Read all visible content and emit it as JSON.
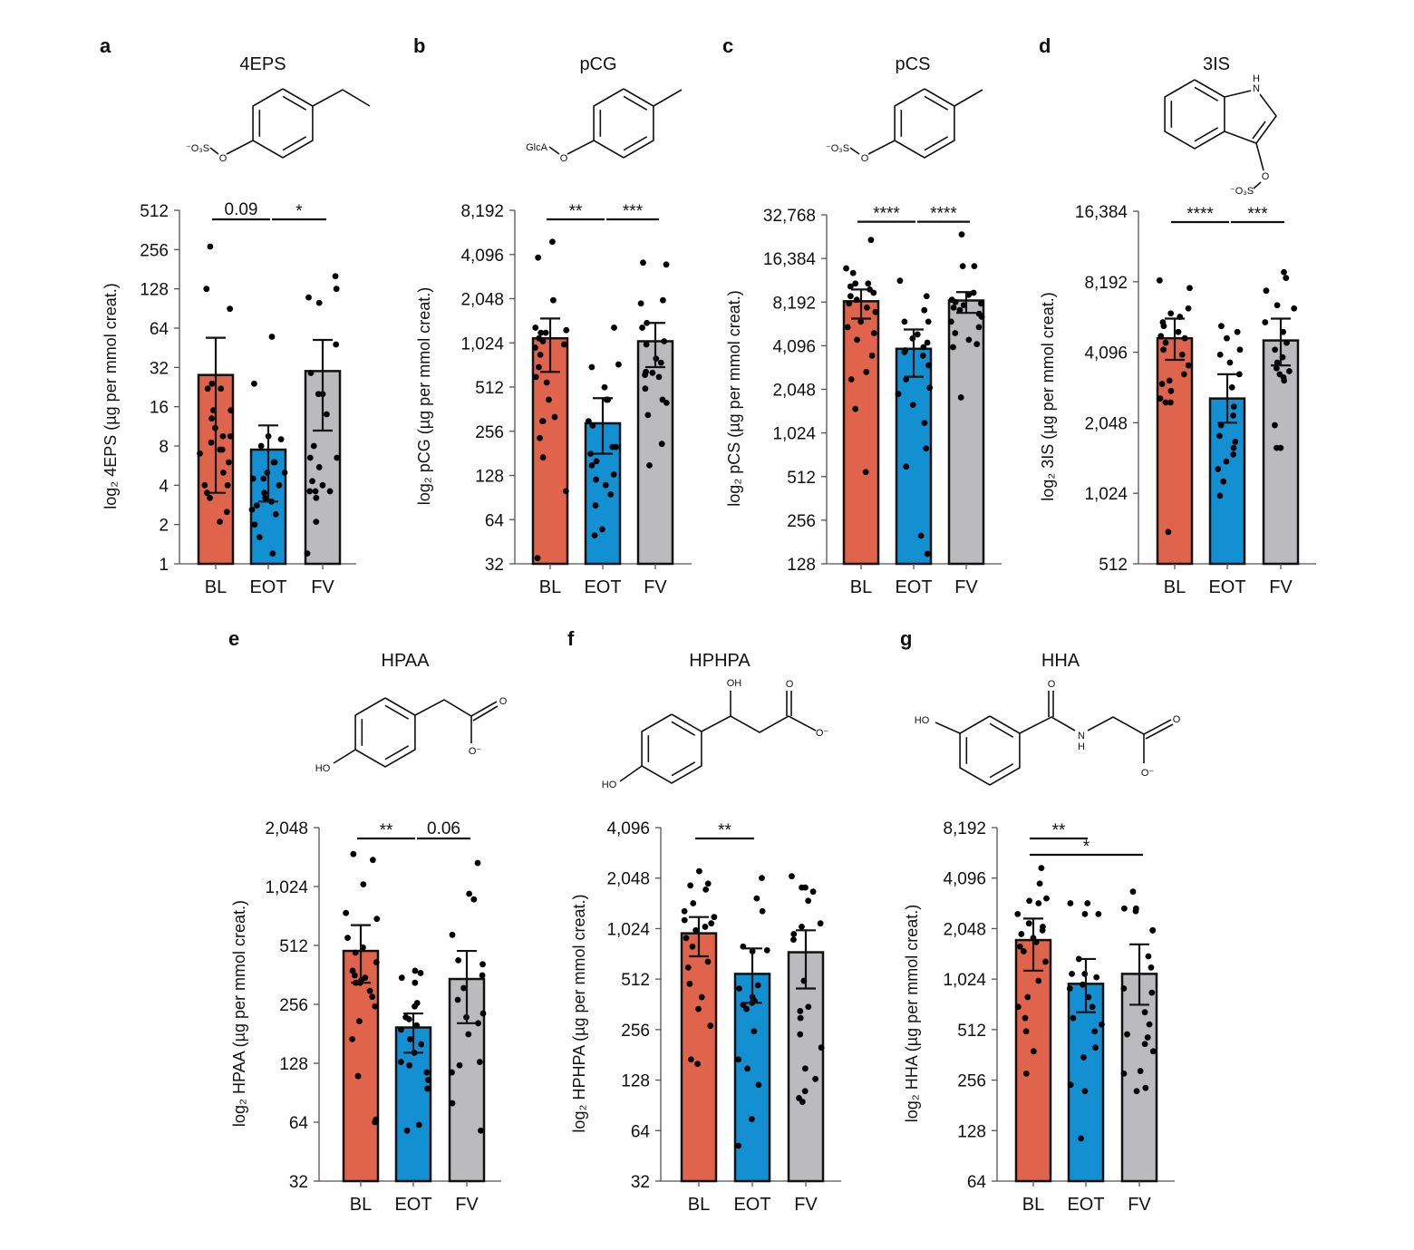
{
  "colors": {
    "BL": "#E0644B",
    "EOT": "#1390D2",
    "FV": "#BBBBBD"
  },
  "chart_data": [
    {
      "type": "bar",
      "panel": "a",
      "title": "4EPS",
      "ylabel": "log₂ 4EPS (µg per mmol creat.)",
      "yscale": "log2",
      "ylim": [
        1,
        512
      ],
      "yticks": [
        1,
        2,
        4,
        8,
        16,
        32,
        64,
        128,
        256,
        512
      ],
      "categories": [
        "BL",
        "EOT",
        "FV"
      ],
      "structure_labels": [
        "⁻O₃S",
        "O"
      ],
      "values": [
        28,
        7.5,
        30
      ],
      "error": [
        [
          3.5,
          54
        ],
        [
          3,
          11.5
        ],
        [
          10.5,
          52
        ]
      ],
      "points": [
        [
          270,
          128,
          90,
          24,
          22,
          22,
          15,
          15,
          13,
          11,
          9.5,
          9.5,
          8.5,
          7.5,
          7.5,
          7,
          6,
          5,
          4,
          4,
          3.5,
          3.2,
          2.5,
          2.1
        ],
        [
          55,
          24,
          9.5,
          9,
          8,
          6,
          6,
          5,
          5,
          4.5,
          4.5,
          4,
          3.5,
          3.2,
          3,
          2.8,
          2.6,
          2.4,
          2,
          1.6,
          1.2
        ],
        [
          160,
          128,
          110,
          100,
          48,
          29,
          20,
          20,
          14,
          8,
          6.5,
          6.5,
          5.5,
          4.3,
          4,
          3.6,
          3.6,
          3.6,
          3.2,
          2.1,
          1.2
        ]
      ],
      "significance": [
        {
          "from": "BL",
          "to": "EOT",
          "label": "0.09",
          "level": 0
        },
        {
          "from": "EOT",
          "to": "FV",
          "label": "*",
          "level": 0
        }
      ]
    },
    {
      "type": "bar",
      "panel": "b",
      "title": "pCG",
      "ylabel": "log₂ pCG (µg per mmol creat.)",
      "yscale": "log2",
      "ylim": [
        32,
        8192
      ],
      "yticks": [
        32,
        64,
        128,
        256,
        512,
        1024,
        2048,
        4096,
        8192
      ],
      "categories": [
        "BL",
        "EOT",
        "FV"
      ],
      "structure_labels": [
        "GlcA",
        "O"
      ],
      "values": [
        1100,
        290,
        1050
      ],
      "error": [
        [
          650,
          1500
        ],
        [
          180,
          430
        ],
        [
          700,
          1400
        ]
      ],
      "points": [
        [
          5000,
          3900,
          2000,
          1300,
          1250,
          1200,
          1200,
          1100,
          1050,
          1000,
          950,
          850,
          700,
          600,
          550,
          420,
          320,
          300,
          300,
          230,
          170,
          100,
          35
        ],
        [
          1300,
          730,
          700,
          510,
          420,
          420,
          300,
          280,
          200,
          200,
          180,
          160,
          150,
          130,
          120,
          110,
          95,
          80,
          55,
          50
        ],
        [
          3600,
          3500,
          2000,
          1900,
          1400,
          1300,
          1050,
          1000,
          800,
          750,
          650,
          640,
          620,
          600,
          500,
          420,
          400,
          330,
          210,
          150
        ]
      ],
      "significance": [
        {
          "from": "BL",
          "to": "EOT",
          "label": "**",
          "level": 0
        },
        {
          "from": "EOT",
          "to": "FV",
          "label": "***",
          "level": 0
        }
      ]
    },
    {
      "type": "bar",
      "panel": "c",
      "title": "pCS",
      "ylabel": "log₂ pCS (µg per mmol creat.)",
      "yscale": "log2",
      "ylim": [
        128,
        32768
      ],
      "yticks": [
        128,
        256,
        512,
        1024,
        2048,
        4096,
        8192,
        16384,
        32768
      ],
      "categories": [
        "BL",
        "EOT",
        "FV"
      ],
      "structure_labels": [
        "⁻O₃S",
        "O"
      ],
      "values": [
        8300,
        3900,
        8400
      ],
      "error": [
        [
          6300,
          10000
        ],
        [
          2500,
          5300
        ],
        [
          6900,
          9600
        ]
      ],
      "points": [
        [
          22000,
          14000,
          13000,
          11000,
          11000,
          10500,
          10000,
          9500,
          9000,
          8500,
          8000,
          7500,
          7000,
          6000,
          5500,
          5000,
          4500,
          3500,
          2700,
          2400,
          1500,
          550
        ],
        [
          11500,
          9000,
          7200,
          6000,
          6000,
          4900,
          4600,
          4300,
          4000,
          3800,
          3700,
          3500,
          3000,
          2400,
          2100,
          1900,
          1600,
          1200,
          800,
          600,
          200,
          150
        ],
        [
          24000,
          14500,
          14500,
          9500,
          9200,
          8500,
          8200,
          8000,
          7800,
          7500,
          7200,
          6800,
          6500,
          6000,
          5500,
          5000,
          4500,
          4200,
          4000,
          1800
        ]
      ],
      "significance": [
        {
          "from": "BL",
          "to": "EOT",
          "label": "****",
          "level": 0
        },
        {
          "from": "EOT",
          "to": "FV",
          "label": "****",
          "level": 0
        }
      ]
    },
    {
      "type": "bar",
      "panel": "d",
      "title": "3IS",
      "ylabel": "log₂ 3IS (µg per mmol creat.)",
      "yscale": "log2",
      "ylim": [
        512,
        16384
      ],
      "yticks": [
        512,
        1024,
        2048,
        4096,
        8192,
        16384
      ],
      "categories": [
        "BL",
        "EOT",
        "FV"
      ],
      "structure_labels": [
        "H",
        "N",
        "O",
        "⁻O₃S"
      ],
      "values": [
        4700,
        2600,
        4600
      ],
      "error": [
        [
          3800,
          5700
        ],
        [
          2050,
          3300
        ],
        [
          3600,
          5700
        ]
      ],
      "points": [
        [
          8300,
          7700,
          6300,
          6000,
          5800,
          5500,
          5300,
          5000,
          4800,
          4700,
          4500,
          4200,
          4000,
          3600,
          3300,
          3100,
          3000,
          2800,
          2600,
          2500,
          2500,
          700
        ],
        [
          5300,
          5000,
          4700,
          4200,
          4000,
          3700,
          3300,
          2900,
          2400,
          2200,
          2000,
          1800,
          1700,
          1600,
          1500,
          1400,
          1300,
          1150,
          1000
        ],
        [
          9000,
          8500,
          7500,
          6500,
          6300,
          5500,
          5000,
          4500,
          4200,
          3900,
          3700,
          3500,
          3400,
          3300,
          3200,
          3100,
          2000,
          1600,
          1600
        ]
      ],
      "significance": [
        {
          "from": "BL",
          "to": "EOT",
          "label": "****",
          "level": 0
        },
        {
          "from": "EOT",
          "to": "FV",
          "label": "***",
          "level": 0
        }
      ]
    },
    {
      "type": "bar",
      "panel": "e",
      "title": "HPAA",
      "ylabel": "log₂ HPAA (µg per mmol creat.)",
      "yscale": "log2",
      "ylim": [
        32,
        2048
      ],
      "yticks": [
        32,
        64,
        128,
        256,
        512,
        1024,
        2048
      ],
      "categories": [
        "BL",
        "EOT",
        "FV"
      ],
      "structure_labels": [
        "HO",
        "O",
        "O⁻"
      ],
      "values": [
        480,
        195,
        345
      ],
      "error": [
        [
          330,
          650
        ],
        [
          145,
          230
        ],
        [
          205,
          480
        ]
      ],
      "points": [
        [
          1500,
          1400,
          1050,
          750,
          700,
          560,
          500,
          470,
          420,
          380,
          360,
          350,
          340,
          330,
          330,
          300,
          280,
          250,
          210,
          170,
          110,
          66,
          64
        ],
        [
          380,
          370,
          350,
          330,
          260,
          250,
          220,
          215,
          200,
          190,
          170,
          160,
          145,
          130,
          125,
          115,
          105,
          95,
          62,
          58
        ],
        [
          1350,
          940,
          880,
          580,
          430,
          410,
          360,
          310,
          270,
          230,
          220,
          205,
          180,
          130,
          125,
          115,
          80,
          58
        ]
      ],
      "significance": [
        {
          "from": "BL",
          "to": "EOT",
          "label": "**",
          "level": 0
        },
        {
          "from": "EOT",
          "to": "FV",
          "label": "0.06",
          "level": 0
        }
      ]
    },
    {
      "type": "bar",
      "panel": "f",
      "title": "HPHPA",
      "ylabel": "log₂ HPHPA (µg per mmol creat.)",
      "yscale": "log2",
      "ylim": [
        32,
        4096
      ],
      "yticks": [
        32,
        64,
        128,
        256,
        512,
        1024,
        2048,
        4096
      ],
      "categories": [
        "BL",
        "EOT",
        "FV"
      ],
      "structure_labels": [
        "HO",
        "OH",
        "O",
        "O⁻"
      ],
      "values": [
        960,
        550,
        740
      ],
      "error": [
        [
          700,
          1200
        ],
        [
          370,
          780
        ],
        [
          450,
          1000
        ]
      ],
      "points": [
        [
          2250,
          1900,
          1850,
          1750,
          1450,
          1300,
          1200,
          1150,
          1100,
          1050,
          1000,
          900,
          800,
          650,
          600,
          480,
          400,
          340,
          270,
          170,
          160
        ],
        [
          2050,
          1550,
          1300,
          800,
          760,
          750,
          470,
          450,
          400,
          380,
          370,
          360,
          340,
          250,
          170,
          150,
          120,
          75,
          52
        ],
        [
          2100,
          1800,
          1800,
          1700,
          1500,
          1100,
          1050,
          950,
          880,
          500,
          350,
          330,
          300,
          240,
          200,
          150,
          130,
          110,
          100,
          95
        ]
      ],
      "significance": [
        {
          "from": "BL",
          "to": "EOT",
          "label": "**",
          "level": 0
        }
      ]
    },
    {
      "type": "bar",
      "panel": "g",
      "title": "HHA",
      "ylabel": "log₂ HHA (µg per mmol creat.)",
      "yscale": "log2",
      "ylim": [
        64,
        8192
      ],
      "yticks": [
        64,
        128,
        256,
        512,
        1024,
        2048,
        4096,
        8192
      ],
      "categories": [
        "BL",
        "EOT",
        "FV"
      ],
      "structure_labels": [
        "HO",
        "O",
        "N",
        "H",
        "O",
        "O⁻"
      ],
      "values": [
        1750,
        960,
        1100
      ],
      "error": [
        [
          1150,
          2350
        ],
        [
          650,
          1350
        ],
        [
          720,
          1650
        ]
      ],
      "points": [
        [
          4700,
          3800,
          3100,
          3000,
          2900,
          2500,
          2200,
          2100,
          2000,
          1900,
          1800,
          1700,
          1600,
          1500,
          1300,
          1000,
          800,
          700,
          600,
          500,
          380,
          280
        ],
        [
          2900,
          2900,
          2500,
          2500,
          1350,
          1100,
          1100,
          1050,
          950,
          900,
          800,
          700,
          600,
          550,
          500,
          400,
          350,
          240,
          220,
          115
        ],
        [
          3400,
          2700,
          2700,
          2600,
          2000,
          2000,
          1400,
          1200,
          900,
          850,
          650,
          550,
          480,
          460,
          420,
          380,
          290,
          280,
          230,
          220
        ]
      ],
      "significance": [
        {
          "from": "BL",
          "to": "EOT",
          "label": "**",
          "level": 0
        },
        {
          "from": "BL",
          "to": "FV",
          "label": "*",
          "level": 1
        }
      ]
    }
  ]
}
